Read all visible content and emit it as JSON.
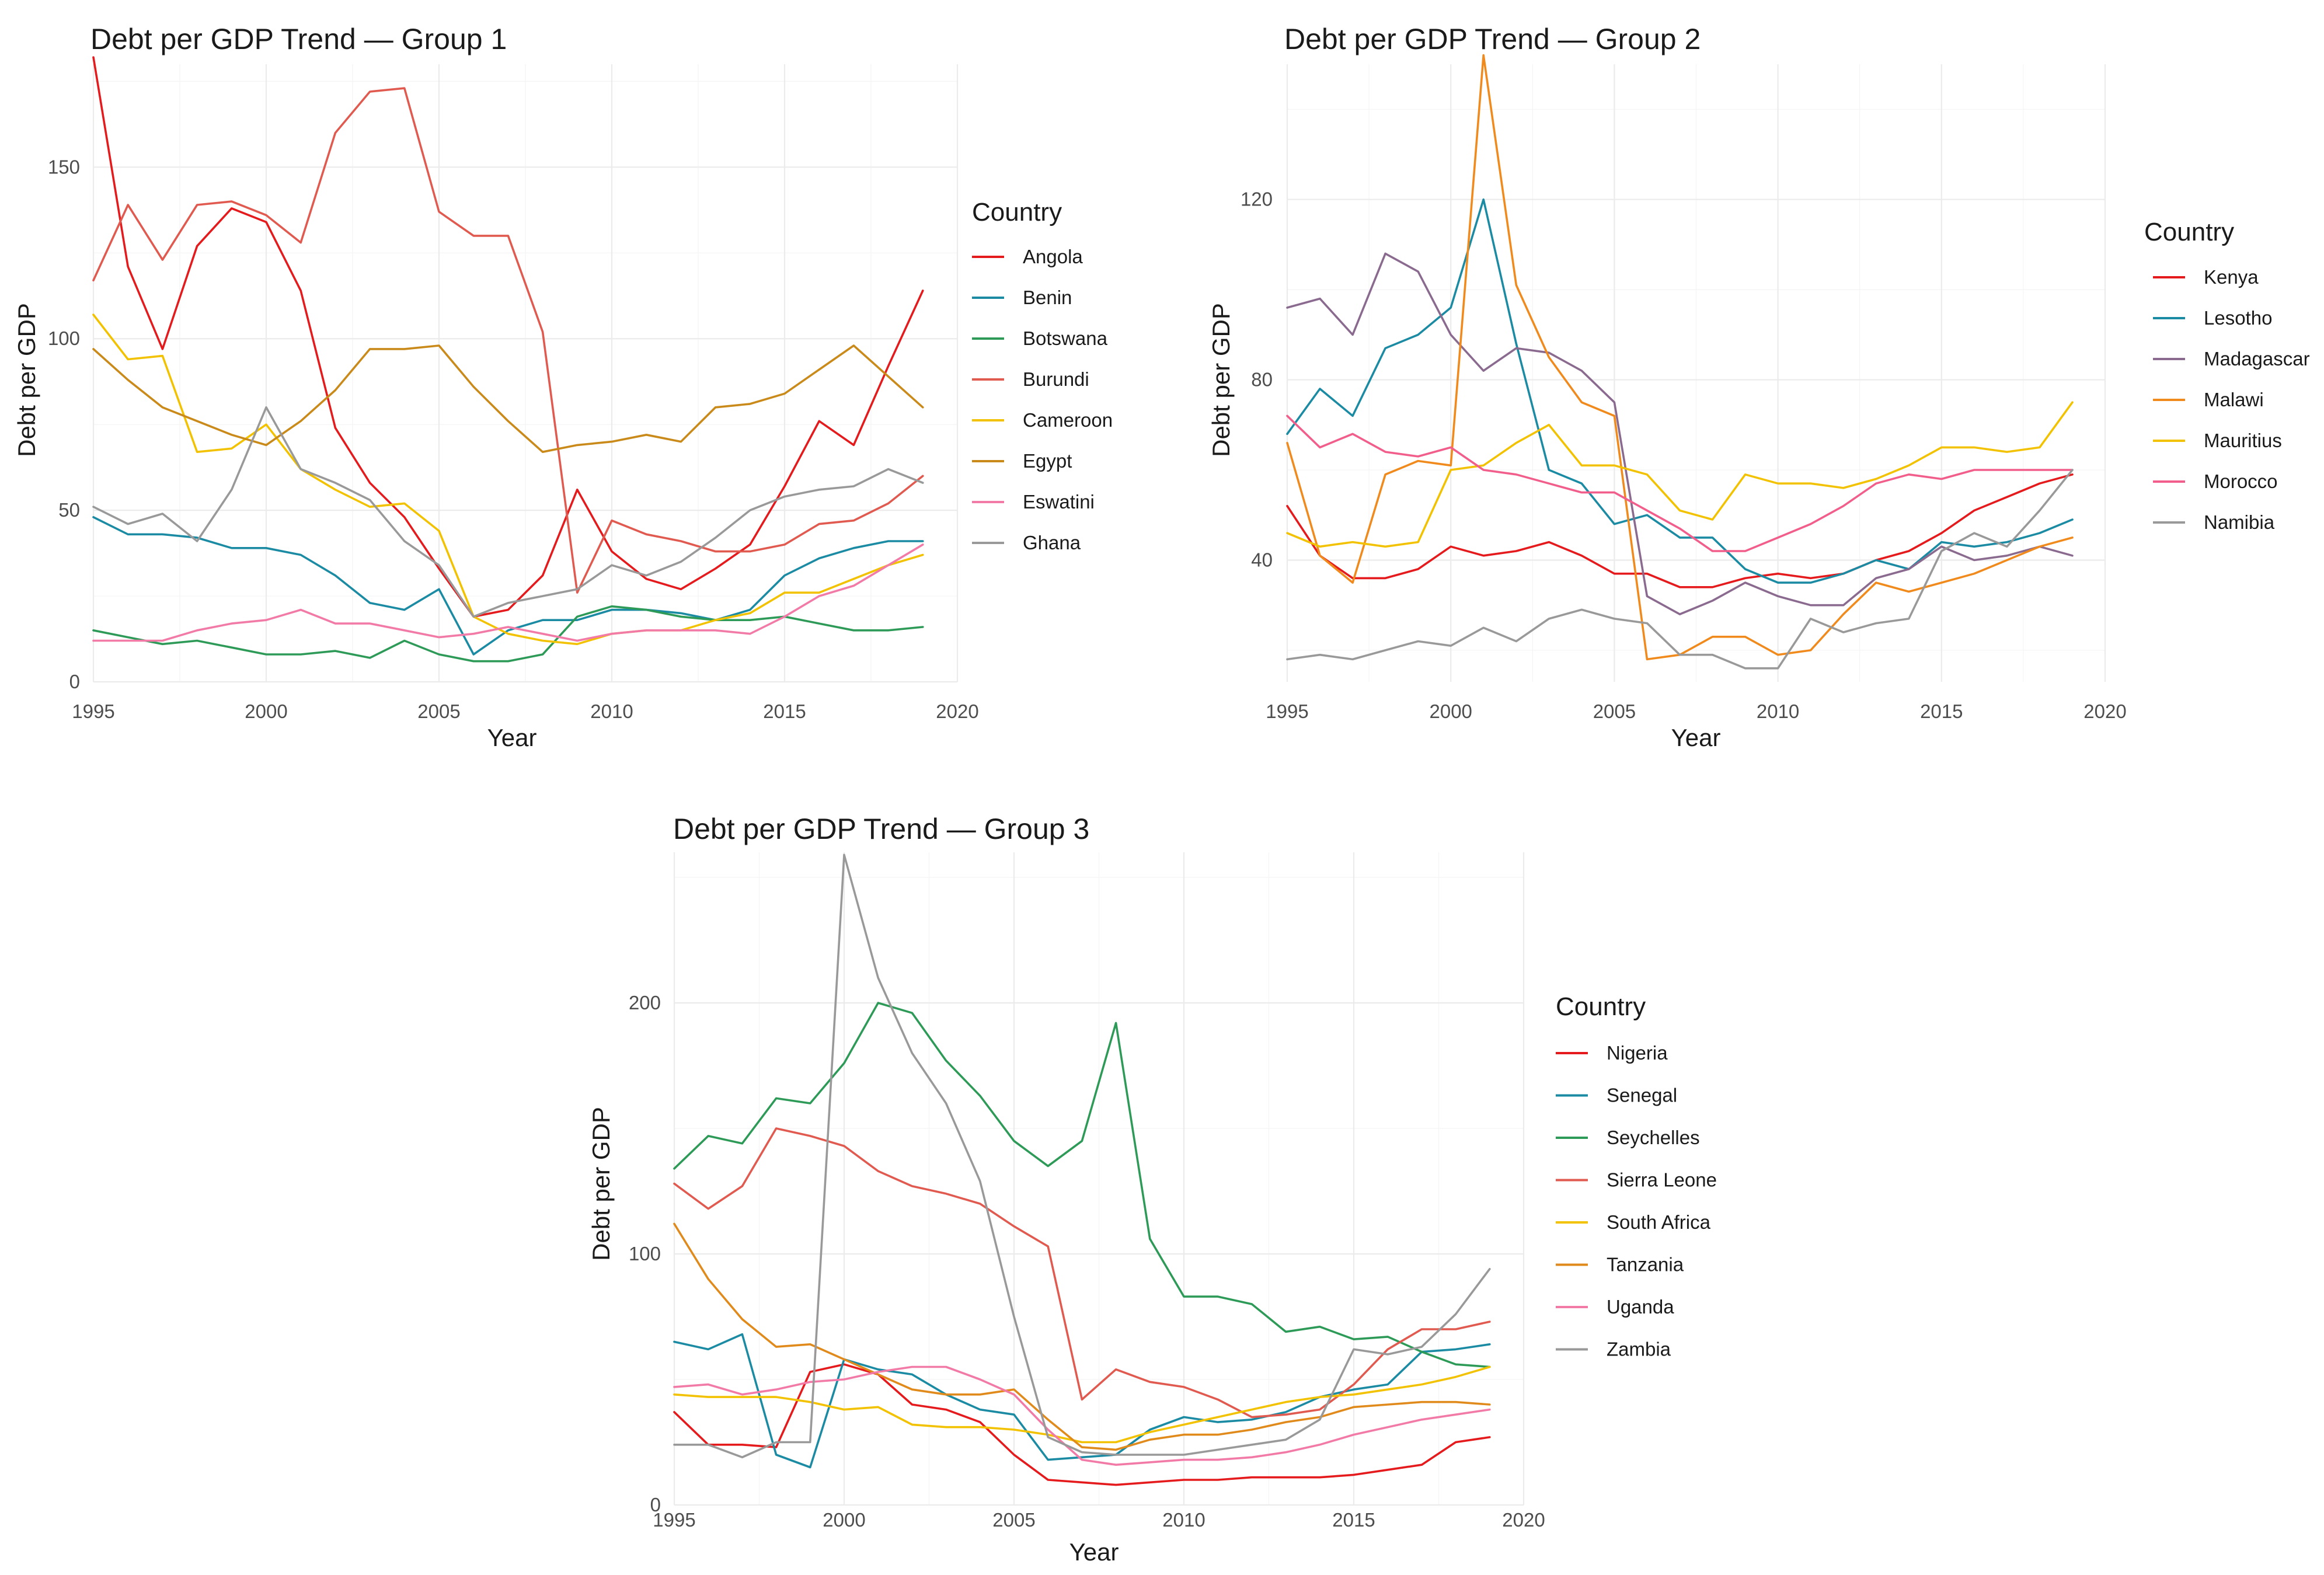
{
  "chart_data": [
    {
      "type": "line",
      "title": "Debt per GDP Trend — Group 1",
      "xlabel": "Year",
      "ylabel": "Debt per GDP",
      "xlim": [
        1995,
        2020
      ],
      "ylim": [
        0,
        180
      ],
      "x_ticks": [
        1995,
        2000,
        2005,
        2010,
        2015,
        2020
      ],
      "y_ticks": [
        0,
        50,
        100,
        150
      ],
      "legend_title": "Country",
      "legend_position": "right",
      "x": [
        1995,
        1996,
        1997,
        1998,
        1999,
        2000,
        2001,
        2002,
        2003,
        2004,
        2005,
        2006,
        2007,
        2008,
        2009,
        2010,
        2011,
        2012,
        2013,
        2014,
        2015,
        2016,
        2017,
        2018,
        2019
      ],
      "series": [
        {
          "name": "Angola",
          "color": "#e41a1c",
          "values": [
            182,
            121,
            97,
            127,
            138,
            134,
            114,
            74,
            58,
            48,
            33,
            19,
            21,
            31,
            56,
            38,
            30,
            27,
            33,
            40,
            57,
            76,
            69,
            92,
            114
          ]
        },
        {
          "name": "Benin",
          "color": "#1b8aa3",
          "values": [
            48,
            43,
            43,
            42,
            39,
            39,
            37,
            31,
            23,
            21,
            27,
            8,
            15,
            18,
            18,
            21,
            21,
            20,
            18,
            21,
            31,
            36,
            39,
            41,
            41
          ]
        },
        {
          "name": "Botswana",
          "color": "#2e9a58",
          "values": [
            15,
            13,
            11,
            12,
            10,
            8,
            8,
            9,
            7,
            12,
            8,
            6,
            6,
            8,
            19,
            22,
            21,
            19,
            18,
            18,
            19,
            17,
            15,
            15,
            16
          ]
        },
        {
          "name": "Burundi",
          "color": "#e05a50",
          "values": [
            117,
            139,
            123,
            139,
            140,
            136,
            128,
            160,
            172,
            173,
            137,
            130,
            130,
            102,
            26,
            47,
            43,
            41,
            38,
            38,
            40,
            46,
            47,
            52,
            60
          ]
        },
        {
          "name": "Cameroon",
          "color": "#f2c200",
          "values": [
            107,
            94,
            95,
            67,
            68,
            75,
            62,
            56,
            51,
            52,
            44,
            19,
            14,
            12,
            11,
            14,
            15,
            15,
            18,
            20,
            26,
            26,
            30,
            34,
            37
          ]
        },
        {
          "name": "Egypt",
          "color": "#c98a1a",
          "values": [
            97,
            88,
            80,
            76,
            72,
            69,
            76,
            85,
            97,
            97,
            98,
            86,
            76,
            67,
            69,
            70,
            72,
            70,
            80,
            81,
            84,
            91,
            98,
            89,
            80
          ]
        },
        {
          "name": "Eswatini",
          "color": "#f27aa6",
          "values": [
            12,
            12,
            12,
            15,
            17,
            18,
            21,
            17,
            17,
            15,
            13,
            14,
            16,
            14,
            12,
            14,
            15,
            15,
            15,
            14,
            19,
            25,
            28,
            34,
            40
          ]
        },
        {
          "name": "Ghana",
          "color": "#999999",
          "values": [
            51,
            46,
            49,
            41,
            56,
            80,
            62,
            58,
            53,
            41,
            34,
            19,
            23,
            25,
            27,
            34,
            31,
            35,
            42,
            50,
            54,
            56,
            57,
            62,
            58
          ]
        }
      ]
    },
    {
      "type": "line",
      "title": "Debt per GDP Trend — Group 2",
      "xlabel": "Year",
      "ylabel": "Debt per GDP",
      "xlim": [
        1995,
        2020
      ],
      "ylim": [
        13,
        150
      ],
      "x_ticks": [
        1995,
        2000,
        2005,
        2010,
        2015,
        2020
      ],
      "y_ticks": [
        40,
        80,
        120
      ],
      "legend_title": "Country",
      "legend_position": "right",
      "x": [
        1995,
        1996,
        1997,
        1998,
        1999,
        2000,
        2001,
        2002,
        2003,
        2004,
        2005,
        2006,
        2007,
        2008,
        2009,
        2010,
        2011,
        2012,
        2013,
        2014,
        2015,
        2016,
        2017,
        2018,
        2019
      ],
      "series": [
        {
          "name": "Kenya",
          "color": "#e41a1c",
          "values": [
            52,
            41,
            36,
            36,
            38,
            43,
            41,
            42,
            44,
            41,
            37,
            37,
            34,
            34,
            36,
            37,
            36,
            37,
            40,
            42,
            46,
            51,
            54,
            57,
            59
          ]
        },
        {
          "name": "Lesotho",
          "color": "#1b8aa3",
          "values": [
            68,
            78,
            72,
            87,
            90,
            96,
            120,
            88,
            60,
            57,
            48,
            50,
            45,
            45,
            38,
            35,
            35,
            37,
            40,
            38,
            44,
            43,
            44,
            46,
            49
          ]
        },
        {
          "name": "Madagascar",
          "color": "#8a6a8f",
          "values": [
            96,
            98,
            90,
            108,
            104,
            90,
            82,
            87,
            86,
            82,
            75,
            32,
            28,
            31,
            35,
            32,
            30,
            30,
            36,
            38,
            43,
            40,
            41,
            43,
            41
          ]
        },
        {
          "name": "Malawi",
          "color": "#f08a1c",
          "values": [
            66,
            41,
            35,
            59,
            62,
            61,
            152,
            101,
            85,
            75,
            72,
            18,
            19,
            23,
            23,
            19,
            20,
            28,
            35,
            33,
            35,
            37,
            40,
            43,
            45
          ]
        },
        {
          "name": "Mauritius",
          "color": "#f2c200",
          "values": [
            46,
            43,
            44,
            43,
            44,
            60,
            61,
            66,
            70,
            61,
            61,
            59,
            51,
            49,
            59,
            57,
            57,
            56,
            58,
            61,
            65,
            65,
            64,
            65,
            75
          ]
        },
        {
          "name": "Morocco",
          "color": "#f25e8c",
          "values": [
            72,
            65,
            68,
            64,
            63,
            65,
            60,
            59,
            57,
            55,
            55,
            51,
            47,
            42,
            42,
            45,
            48,
            52,
            57,
            59,
            58,
            60,
            60,
            60,
            60
          ]
        },
        {
          "name": "Namibia",
          "color": "#999999",
          "values": [
            18,
            19,
            18,
            20,
            22,
            21,
            25,
            22,
            27,
            29,
            27,
            26,
            19,
            19,
            16,
            16,
            27,
            24,
            26,
            27,
            42,
            46,
            43,
            51,
            60
          ]
        }
      ]
    },
    {
      "type": "line",
      "title": "Debt per GDP Trend — Group 3",
      "xlabel": "Year",
      "ylabel": "Debt per GDP",
      "xlim": [
        1995,
        2020
      ],
      "ylim": [
        0,
        260
      ],
      "x_ticks": [
        1995,
        2000,
        2005,
        2010,
        2015,
        2020
      ],
      "y_ticks": [
        0,
        100,
        200
      ],
      "legend_title": "Country",
      "legend_position": "right",
      "x": [
        1995,
        1996,
        1997,
        1998,
        1999,
        2000,
        2001,
        2002,
        2003,
        2004,
        2005,
        2006,
        2007,
        2008,
        2009,
        2010,
        2011,
        2012,
        2013,
        2014,
        2015,
        2016,
        2017,
        2018,
        2019
      ],
      "series": [
        {
          "name": "Nigeria",
          "color": "#e41a1c",
          "values": [
            37,
            24,
            24,
            23,
            53,
            56,
            52,
            40,
            38,
            33,
            20,
            10,
            9,
            8,
            9,
            10,
            10,
            11,
            11,
            11,
            12,
            14,
            16,
            25,
            27
          ]
        },
        {
          "name": "Senegal",
          "color": "#1b8aa3",
          "values": [
            65,
            62,
            68,
            20,
            15,
            58,
            54,
            52,
            44,
            38,
            36,
            18,
            19,
            20,
            30,
            35,
            33,
            34,
            37,
            43,
            46,
            48,
            61,
            62,
            64
          ]
        },
        {
          "name": "Seychelles",
          "color": "#2e9a58",
          "values": [
            134,
            147,
            144,
            162,
            160,
            176,
            200,
            196,
            177,
            163,
            145,
            135,
            145,
            192,
            106,
            83,
            83,
            80,
            69,
            71,
            66,
            67,
            61,
            56,
            55
          ]
        },
        {
          "name": "Sierra Leone",
          "color": "#e05a50",
          "values": [
            128,
            118,
            127,
            150,
            147,
            143,
            133,
            127,
            124,
            120,
            111,
            103,
            42,
            54,
            49,
            47,
            42,
            35,
            36,
            38,
            48,
            62,
            70,
            70,
            73
          ]
        },
        {
          "name": "South Africa",
          "color": "#f2c200",
          "values": [
            44,
            43,
            43,
            43,
            41,
            38,
            39,
            32,
            31,
            31,
            30,
            28,
            25,
            25,
            29,
            32,
            35,
            38,
            41,
            43,
            44,
            46,
            48,
            51,
            55
          ]
        },
        {
          "name": "Tanzania",
          "color": "#e08a1c",
          "values": [
            112,
            90,
            74,
            63,
            64,
            58,
            52,
            46,
            44,
            44,
            46,
            34,
            23,
            22,
            26,
            28,
            28,
            30,
            33,
            35,
            39,
            40,
            41,
            41,
            40
          ]
        },
        {
          "name": "Uganda",
          "color": "#f27aa6",
          "values": [
            47,
            48,
            44,
            46,
            49,
            50,
            53,
            55,
            55,
            50,
            44,
            30,
            18,
            16,
            17,
            18,
            18,
            19,
            21,
            24,
            28,
            31,
            34,
            36,
            38
          ]
        },
        {
          "name": "Zambia",
          "color": "#999999",
          "values": [
            24,
            24,
            19,
            25,
            25,
            259,
            210,
            180,
            160,
            129,
            75,
            27,
            21,
            20,
            20,
            20,
            22,
            24,
            26,
            34,
            62,
            60,
            63,
            76,
            94
          ]
        }
      ]
    }
  ]
}
